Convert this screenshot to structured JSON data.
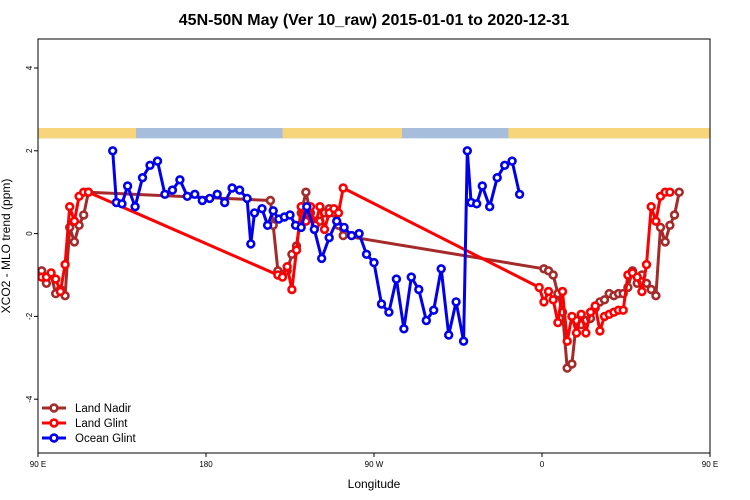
{
  "chart_data": {
    "type": "line",
    "title": "45N-50N May (Ver 10_raw)   2015-01-01 to 2020-12-31",
    "xlabel": "Longitude",
    "ylabel": "XCO2 - MLO trend (ppm)",
    "xlim": [
      90,
      450
    ],
    "ylim": [
      -5.3,
      4.7
    ],
    "x_ticks": [
      {
        "value": 90,
        "label": "90 E"
      },
      {
        "value": 180,
        "label": "180"
      },
      {
        "value": 270,
        "label": "90 W"
      },
      {
        "value": 360,
        "label": "0"
      },
      {
        "value": 450,
        "label": "90 E"
      },
      {
        "value": 540,
        "label": "180"
      }
    ],
    "y_ticks": [
      {
        "value": -4,
        "label": "-4"
      },
      {
        "value": -2,
        "label": "-2"
      },
      {
        "value": 0,
        "label": "0"
      },
      {
        "value": 2,
        "label": "2"
      },
      {
        "value": 4,
        "label": "4"
      }
    ],
    "grid": false,
    "legend_position": "bottom-left",
    "land_ocean_strip": {
      "y_range": [
        2.3,
        2.55
      ],
      "land_color": "#f7d67b",
      "ocean_color": "#a6bddb",
      "land_x_ranges": [
        [
          90,
          142.5
        ],
        [
          221,
          285
        ],
        [
          342,
          470.5
        ]
      ]
    },
    "series": [
      {
        "name": "Land Nadir",
        "color": "#a52a2a",
        "points": [
          [
            92,
            -0.9
          ],
          [
            94.5,
            -1.2
          ],
          [
            97,
            -1
          ],
          [
            99.5,
            -1.45
          ],
          [
            102,
            -1.35
          ],
          [
            104.5,
            -1.5
          ],
          [
            107,
            0.15
          ],
          [
            109.5,
            -0.2
          ],
          [
            112,
            0.2
          ],
          [
            114.5,
            0.45
          ],
          [
            117,
            1
          ],
          [
            214.5,
            0.8
          ],
          [
            216,
            0.2
          ],
          [
            218.5,
            -0.9
          ],
          [
            221,
            -1
          ],
          [
            223.5,
            -0.9
          ],
          [
            226,
            -0.5
          ],
          [
            228.5,
            -0.3
          ],
          [
            231,
            0.5
          ],
          [
            233.5,
            1
          ],
          [
            236,
            0.5
          ],
          [
            238.5,
            0.3
          ],
          [
            241,
            0.3
          ],
          [
            243.5,
            0.5
          ],
          [
            246,
            0.6
          ],
          [
            248.5,
            0.5
          ],
          [
            251,
            0.2
          ],
          [
            253.5,
            -0.05
          ],
          [
            361,
            -0.85
          ],
          [
            363.5,
            -0.9
          ],
          [
            366,
            -1
          ],
          [
            368.5,
            -1.45
          ],
          [
            371,
            -1.9
          ],
          [
            373.5,
            -3.25
          ],
          [
            376,
            -3.15
          ],
          [
            378.5,
            -2.1
          ],
          [
            381,
            -2.2
          ],
          [
            383.5,
            -2.1
          ],
          [
            386,
            -2.05
          ],
          [
            388.5,
            -1.8
          ],
          [
            391,
            -1.65
          ],
          [
            393.5,
            -1.6
          ],
          [
            396,
            -1.45
          ],
          [
            398.5,
            -1.5
          ],
          [
            401,
            -1.45
          ],
          [
            403.5,
            -1.45
          ],
          [
            406,
            -1.3
          ],
          [
            408.5,
            -0.9
          ],
          [
            411,
            -1.2
          ],
          [
            413.5,
            -1
          ],
          [
            416,
            -1.2
          ],
          [
            418.5,
            -1.35
          ],
          [
            421,
            -1.5
          ],
          [
            423.5,
            0.15
          ],
          [
            426,
            -0.2
          ],
          [
            428.5,
            0.2
          ],
          [
            431,
            0.45
          ],
          [
            433.5,
            1
          ]
        ]
      },
      {
        "name": "Land Glint",
        "color": "#ff0000",
        "points": [
          [
            92,
            -1.05
          ],
          [
            94.5,
            -1.05
          ],
          [
            97,
            -0.95
          ],
          [
            99.5,
            -1.1
          ],
          [
            102,
            -1.4
          ],
          [
            104.5,
            -0.75
          ],
          [
            107,
            0.65
          ],
          [
            109.5,
            0.3
          ],
          [
            112,
            0.9
          ],
          [
            114.5,
            1
          ],
          [
            117,
            1
          ],
          [
            218.5,
            -1
          ],
          [
            221,
            -1.05
          ],
          [
            223.5,
            -0.8
          ],
          [
            226,
            -1.35
          ],
          [
            228.5,
            -0.4
          ],
          [
            231,
            0.65
          ],
          [
            233.5,
            0.3
          ],
          [
            236,
            0.65
          ],
          [
            238.5,
            0.2
          ],
          [
            241,
            0.65
          ],
          [
            243.5,
            0.1
          ],
          [
            246,
            0.5
          ],
          [
            248.5,
            0.6
          ],
          [
            251,
            0.5
          ],
          [
            253.5,
            1.1
          ],
          [
            358.5,
            -1.3
          ],
          [
            361,
            -1.65
          ],
          [
            363.5,
            -1.4
          ],
          [
            366,
            -1.6
          ],
          [
            368.5,
            -2.15
          ],
          [
            371,
            -1.4
          ],
          [
            373.5,
            -2.6
          ],
          [
            376,
            -2
          ],
          [
            378.5,
            -2.4
          ],
          [
            381,
            -1.95
          ],
          [
            383.5,
            -2.4
          ],
          [
            386,
            -1.9
          ],
          [
            388.5,
            -1.75
          ],
          [
            391,
            -2.35
          ],
          [
            393.5,
            -2
          ],
          [
            396,
            -1.95
          ],
          [
            398.5,
            -1.9
          ],
          [
            401,
            -1.85
          ],
          [
            403.5,
            -1.85
          ],
          [
            406,
            -1
          ],
          [
            408.5,
            -0.95
          ],
          [
            411,
            -1.05
          ],
          [
            413.5,
            -1.4
          ],
          [
            416,
            -0.75
          ],
          [
            418.5,
            0.65
          ],
          [
            421,
            0.3
          ],
          [
            423.5,
            0.9
          ],
          [
            426,
            1
          ],
          [
            428.5,
            1
          ]
        ]
      },
      {
        "name": "Ocean Glint",
        "color": "#0000ee",
        "points": [
          [
            130,
            2
          ],
          [
            132,
            0.75
          ],
          [
            135,
            0.72
          ],
          [
            138,
            1.15
          ],
          [
            142,
            0.65
          ],
          [
            146,
            1.35
          ],
          [
            150,
            1.65
          ],
          [
            154,
            1.75
          ],
          [
            158,
            0.95
          ],
          [
            162,
            1.05
          ],
          [
            166,
            1.3
          ],
          [
            170,
            0.9
          ],
          [
            174,
            0.95
          ],
          [
            178,
            0.8
          ],
          [
            182,
            0.85
          ],
          [
            186,
            0.95
          ],
          [
            190,
            0.75
          ],
          [
            194,
            1.1
          ],
          [
            198,
            1.05
          ],
          [
            202,
            0.85
          ],
          [
            204,
            -0.25
          ],
          [
            206,
            0.5
          ],
          [
            210,
            0.6
          ],
          [
            213,
            0.2
          ],
          [
            216,
            0.55
          ],
          [
            219,
            0.35
          ],
          [
            222,
            0.4
          ],
          [
            225,
            0.45
          ],
          [
            228,
            0.2
          ],
          [
            231,
            0.15
          ],
          [
            234,
            0.65
          ],
          [
            238,
            0.1
          ],
          [
            242,
            -0.6
          ],
          [
            246,
            -0.1
          ],
          [
            250,
            0.3
          ],
          [
            254,
            0.15
          ],
          [
            258,
            -0.05
          ],
          [
            262,
            0
          ],
          [
            266,
            -0.5
          ],
          [
            270,
            -0.7
          ],
          [
            274,
            -1.7
          ],
          [
            278,
            -1.9
          ],
          [
            282,
            -1.1
          ],
          [
            286,
            -2.3
          ],
          [
            290,
            -1.05
          ],
          [
            294,
            -1.35
          ],
          [
            298,
            -2.1
          ],
          [
            302,
            -1.85
          ],
          [
            306,
            -0.85
          ],
          [
            310,
            -2.45
          ],
          [
            314,
            -1.65
          ],
          [
            318,
            -2.6
          ],
          [
            320,
            2
          ],
          [
            322,
            0.75
          ],
          [
            325,
            0.72
          ],
          [
            328,
            1.15
          ],
          [
            332,
            0.65
          ],
          [
            336,
            1.35
          ],
          [
            340,
            1.65
          ],
          [
            344,
            1.75
          ],
          [
            348,
            0.95
          ]
        ]
      }
    ]
  }
}
